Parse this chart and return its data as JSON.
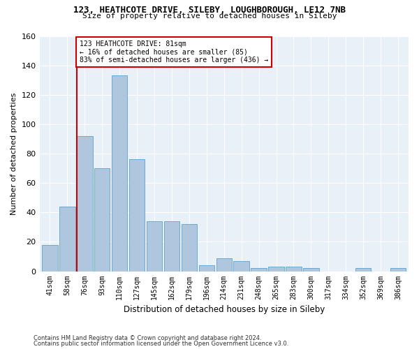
{
  "title_line1": "123, HEATHCOTE DRIVE, SILEBY, LOUGHBOROUGH, LE12 7NB",
  "title_line2": "Size of property relative to detached houses in Sileby",
  "xlabel": "Distribution of detached houses by size in Sileby",
  "ylabel": "Number of detached properties",
  "categories": [
    "41sqm",
    "58sqm",
    "76sqm",
    "93sqm",
    "110sqm",
    "127sqm",
    "145sqm",
    "162sqm",
    "179sqm",
    "196sqm",
    "214sqm",
    "231sqm",
    "248sqm",
    "265sqm",
    "283sqm",
    "300sqm",
    "317sqm",
    "334sqm",
    "352sqm",
    "369sqm",
    "386sqm"
  ],
  "values": [
    18,
    44,
    92,
    70,
    133,
    76,
    34,
    34,
    32,
    4,
    9,
    7,
    2,
    3,
    3,
    2,
    0,
    0,
    2,
    0,
    2
  ],
  "bar_color": "#aec6de",
  "bar_edge_color": "#6fa8d0",
  "marker_label_line1": "123 HEATHCOTE DRIVE: 81sqm",
  "marker_label_line2": "← 16% of detached houses are smaller (85)",
  "marker_label_line3": "83% of semi-detached houses are larger (436) →",
  "vline_color": "#cc0000",
  "annotation_box_color": "#ffffff",
  "annotation_box_edge_color": "#cc0000",
  "ylim": [
    0,
    160
  ],
  "yticks": [
    0,
    20,
    40,
    60,
    80,
    100,
    120,
    140,
    160
  ],
  "background_color": "#e8f0f8",
  "grid_color": "#ffffff",
  "footer_line1": "Contains HM Land Registry data © Crown copyright and database right 2024.",
  "footer_line2": "Contains public sector information licensed under the Open Government Licence v3.0."
}
